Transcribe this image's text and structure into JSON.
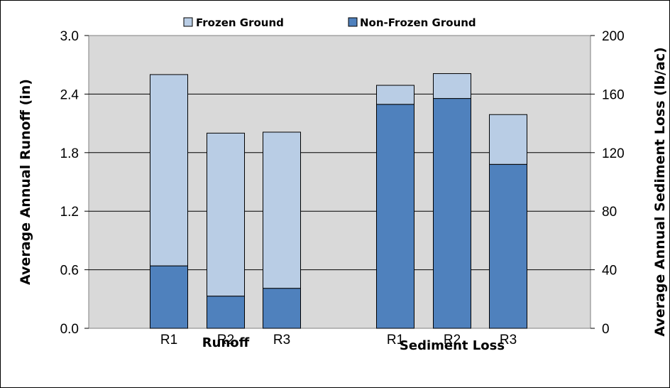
{
  "colors": {
    "frozen": "#b9cde5",
    "nonfrozen": "#4f81bd",
    "plot_bg": "#d9d9d9",
    "bar_stroke": "#000000",
    "grid": "#000000"
  },
  "legend": {
    "frozen_label": "Frozen Ground",
    "nonfrozen_label": "Non-Frozen Ground"
  },
  "axes": {
    "left_title": "Average Annual Runoff (in)",
    "right_title": "Average Annual Sediment Loss (lb/ac)",
    "left_ticks": [
      "0.0",
      "0.6",
      "1.2",
      "1.8",
      "2.4",
      "3.0"
    ],
    "right_ticks": [
      "0",
      "40",
      "80",
      "120",
      "160",
      "200"
    ]
  },
  "chart_data": {
    "type": "bar",
    "stacked": true,
    "grid": true,
    "legend_position": "top",
    "groups": [
      {
        "name": "Runoff",
        "axis": "left",
        "ylabel": "Average Annual Runoff (in)",
        "ylim": [
          0,
          3.0
        ],
        "categories": [
          "R1",
          "R2",
          "R3"
        ],
        "series": [
          {
            "name": "Non-Frozen Ground",
            "values": [
              0.64,
              0.33,
              0.41
            ]
          },
          {
            "name": "Frozen Ground",
            "values": [
              1.96,
              1.67,
              1.6
            ]
          }
        ]
      },
      {
        "name": "Sediment Loss",
        "axis": "right",
        "ylabel": "Average Annual Sediment Loss (lb/ac)",
        "ylim": [
          0,
          200
        ],
        "categories": [
          "R1",
          "R2",
          "R3"
        ],
        "series": [
          {
            "name": "Non-Frozen Ground",
            "values": [
              153,
              157,
              112
            ]
          },
          {
            "name": "Frozen Ground",
            "values": [
              13,
              17,
              34
            ]
          }
        ]
      }
    ]
  }
}
